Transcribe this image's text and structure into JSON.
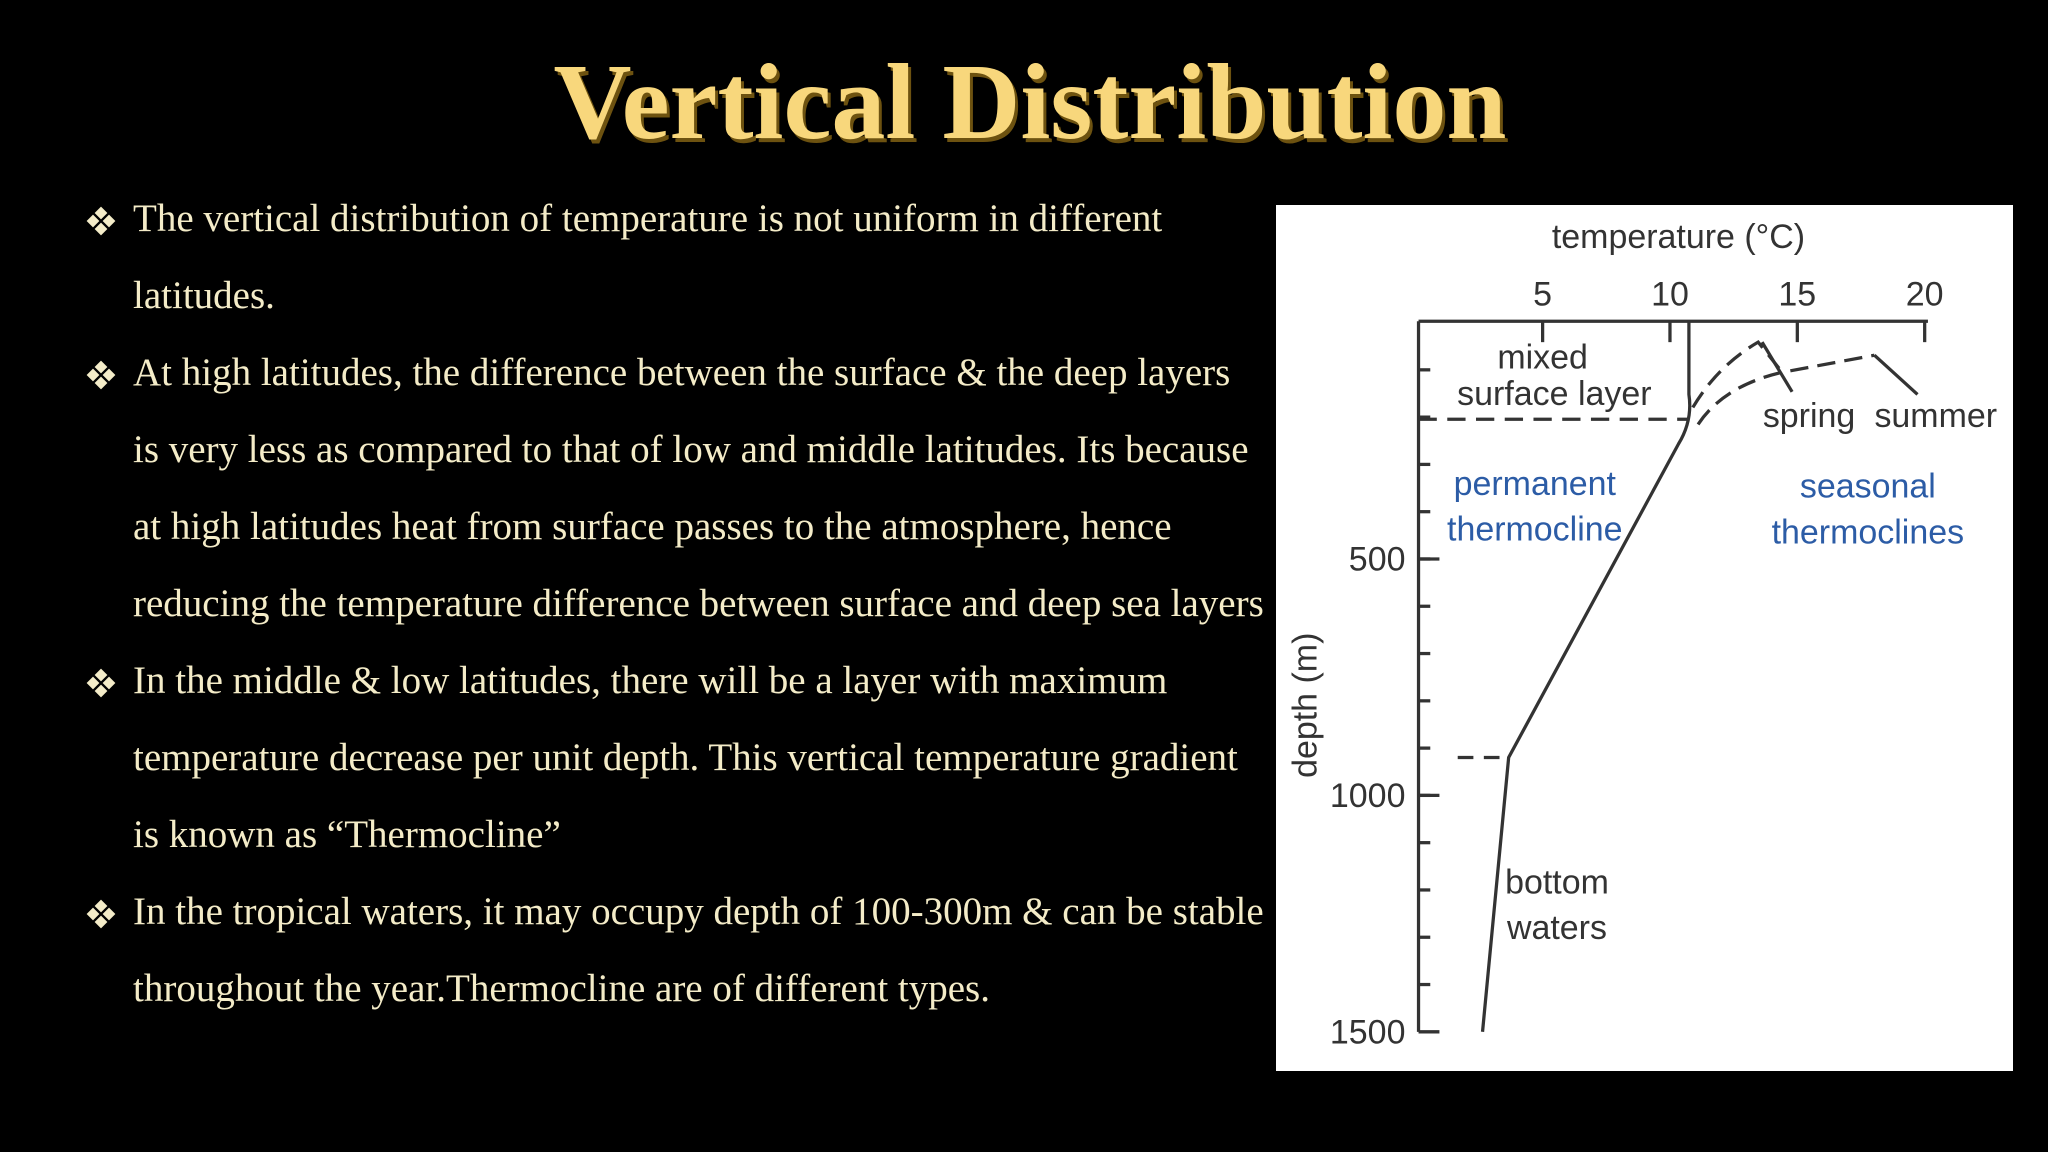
{
  "slide": {
    "title": "Vertical Distribution",
    "bullets": [
      "The vertical distribution of temperature is not uniform in different latitudes.",
      "At high latitudes, the difference between the surface & the deep layers is very less as compared to that of low and middle latitudes. Its because at high latitudes heat from surface passes to the atmosphere, hence reducing the temperature difference between surface and deep sea layers",
      "In the middle & low latitudes, there will be a layer with maximum temperature decrease per unit depth. This vertical temperature gradient is known as “Thermocline”",
      "In the tropical waters, it may occupy depth of 100-300m & can be stable throughout the year.Thermocline are of different types."
    ]
  },
  "figure": {
    "x_label": "temperature (°C)",
    "y_label": "depth (m)",
    "xticks": [
      5,
      10,
      15,
      20
    ],
    "yticks": [
      500,
      1000,
      1500
    ],
    "labels": {
      "mixed_1": "mixed",
      "mixed_2": "surface layer",
      "spring": "spring",
      "summer": "summer",
      "permanent_1": "permanent",
      "permanent_2": "thermocline",
      "seasonal_1": "seasonal",
      "seasonal_2": "thermoclines",
      "bottom_1": "bottom",
      "bottom_2": "waters"
    }
  }
}
